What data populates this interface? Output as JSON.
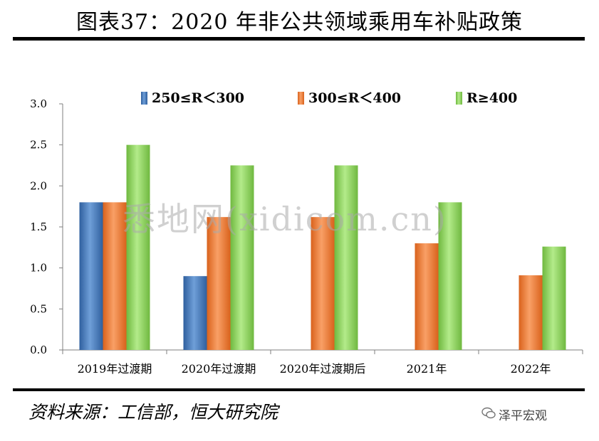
{
  "header": {
    "title": "图表37：2020 年非公共领域乘用车补贴政策"
  },
  "footer": {
    "source": "资料来源：工信部，恒大研究院",
    "brand": "泽平宏观"
  },
  "watermark": "悉地网(xidicom.cn)",
  "colors": {
    "series_1": "#4a7fc0",
    "series_2": "#f0833a",
    "series_3": "#8fd360",
    "axis": "#7f7f7f"
  },
  "chart_data": {
    "type": "bar",
    "categories": [
      "2019年过渡期",
      "2020年过渡期",
      "2020年过渡期后",
      "2021年",
      "2022年"
    ],
    "series": [
      {
        "name": "250≤R＜300",
        "values": [
          1.8,
          0.9,
          null,
          null,
          null
        ]
      },
      {
        "name": "300≤R＜400",
        "values": [
          1.8,
          1.62,
          1.62,
          1.3,
          0.91
        ]
      },
      {
        "name": "R≥400",
        "values": [
          2.5,
          2.25,
          2.25,
          1.8,
          1.26
        ]
      }
    ],
    "ylim": [
      0,
      3.0
    ],
    "yticks": [
      "0.0",
      "0.5",
      "1.0",
      "1.5",
      "2.0",
      "2.5",
      "3.0"
    ],
    "grid": false,
    "legend_position": "top"
  }
}
